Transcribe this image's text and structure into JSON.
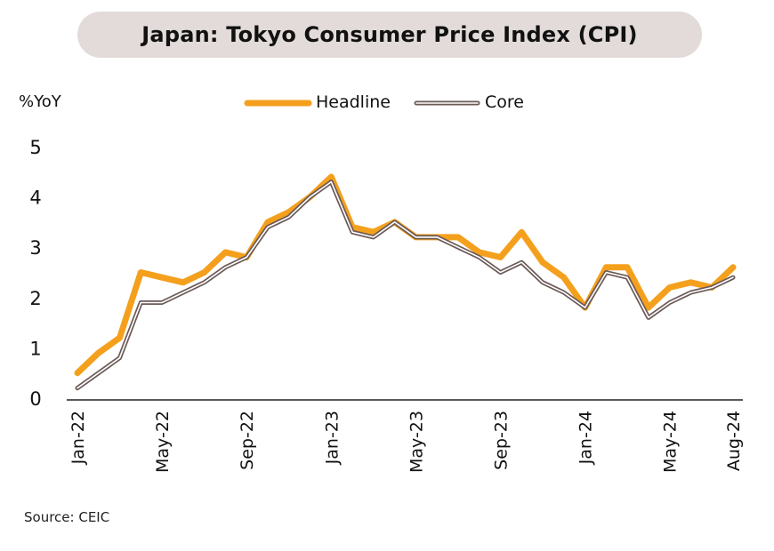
{
  "title": "Japan: Tokyo Consumer Price Index (CPI)",
  "source": "Source: CEIC",
  "colors": {
    "headline": "#f4a01d",
    "core_outline": "#6b5a57",
    "core_fill": "#ffffff",
    "title_bg": "#e2dbd9"
  },
  "chart_data": {
    "type": "line",
    "ylabel": "%YoY",
    "ylim": [
      0,
      5
    ],
    "yticks": [
      0,
      1,
      2,
      3,
      4,
      5
    ],
    "grid": false,
    "legend_placement": "top-center",
    "x": [
      "Jan-22",
      "Feb-22",
      "Mar-22",
      "Apr-22",
      "May-22",
      "Jun-22",
      "Jul-22",
      "Aug-22",
      "Sep-22",
      "Oct-22",
      "Nov-22",
      "Dec-22",
      "Jan-23",
      "Feb-23",
      "Mar-23",
      "Apr-23",
      "May-23",
      "Jun-23",
      "Jul-23",
      "Aug-23",
      "Sep-23",
      "Oct-23",
      "Nov-23",
      "Dec-23",
      "Jan-24",
      "Feb-24",
      "Mar-24",
      "Apr-24",
      "May-24",
      "Jun-24",
      "Jul-24",
      "Aug-24"
    ],
    "xtick_labels": [
      "Jan-22",
      "May-22",
      "Sep-22",
      "Jan-23",
      "May-23",
      "Sep-23",
      "Jan-24",
      "May-24",
      "Aug-24"
    ],
    "series": [
      {
        "name": "Headline",
        "values": [
          0.5,
          0.9,
          1.2,
          2.5,
          2.4,
          2.3,
          2.5,
          2.9,
          2.8,
          3.5,
          3.7,
          4.0,
          4.4,
          3.4,
          3.3,
          3.5,
          3.2,
          3.2,
          3.2,
          2.9,
          2.8,
          3.3,
          2.7,
          2.4,
          1.8,
          2.6,
          2.6,
          1.8,
          2.2,
          2.3,
          2.2,
          2.6
        ]
      },
      {
        "name": "Core",
        "values": [
          0.2,
          0.5,
          0.8,
          1.9,
          1.9,
          2.1,
          2.3,
          2.6,
          2.8,
          3.4,
          3.6,
          4.0,
          4.3,
          3.3,
          3.2,
          3.5,
          3.2,
          3.2,
          3.0,
          2.8,
          2.5,
          2.7,
          2.3,
          2.1,
          1.8,
          2.5,
          2.4,
          1.6,
          1.9,
          2.1,
          2.2,
          2.4
        ]
      }
    ]
  }
}
